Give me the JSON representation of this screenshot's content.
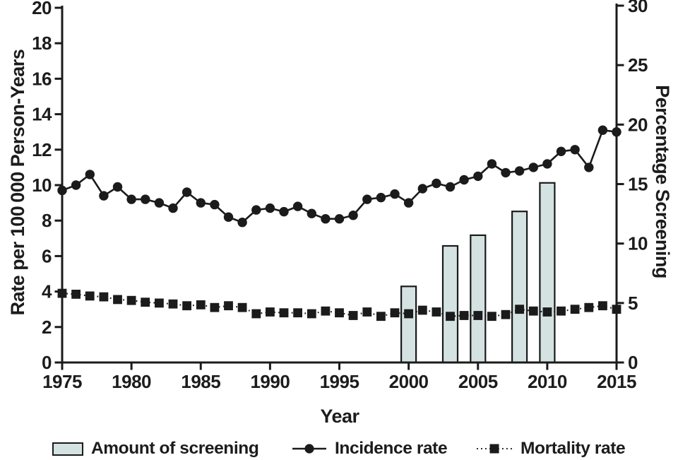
{
  "colors": {
    "ink": "#1c1c1c",
    "line": "#1b1b1b",
    "bar_fill": "#d4e2e2",
    "background": "#ffffff"
  },
  "chart_data": {
    "type": "combo",
    "title": "",
    "xlabel": "Year",
    "x_range": [
      1975,
      2015
    ],
    "x_ticks": [
      1975,
      1980,
      1985,
      1990,
      1995,
      2000,
      2005,
      2010,
      2015
    ],
    "left_axis": {
      "label": "Rate per 100 000 Person-Years",
      "range": [
        0,
        20
      ],
      "ticks": [
        0,
        2,
        4,
        6,
        8,
        10,
        12,
        14,
        16,
        18,
        20
      ]
    },
    "right_axis": {
      "label": "Percentage Screening",
      "range": [
        0,
        30
      ],
      "ticks": [
        0,
        5,
        10,
        15,
        20,
        25,
        30
      ]
    },
    "years": [
      1975,
      1976,
      1977,
      1978,
      1979,
      1980,
      1981,
      1982,
      1983,
      1984,
      1985,
      1986,
      1987,
      1988,
      1989,
      1990,
      1991,
      1992,
      1993,
      1994,
      1995,
      1996,
      1997,
      1998,
      1999,
      2000,
      2001,
      2002,
      2003,
      2004,
      2005,
      2006,
      2007,
      2008,
      2009,
      2010,
      2011,
      2012,
      2013,
      2014,
      2015
    ],
    "series": [
      {
        "name": "Amount of screening",
        "type": "bar",
        "axis": "right",
        "x": [
          2000,
          2003,
          2005,
          2008,
          2010
        ],
        "values": [
          6.4,
          9.8,
          10.7,
          12.7,
          15.1
        ],
        "fill": "#d4e2e2",
        "stroke": "#1b1b1b"
      },
      {
        "name": "Incidence rate",
        "type": "line",
        "axis": "left",
        "marker": "circle",
        "line_style": "solid",
        "values": [
          9.7,
          10.0,
          10.6,
          9.4,
          9.9,
          9.2,
          9.2,
          9.0,
          8.7,
          9.6,
          9.0,
          8.9,
          8.2,
          7.9,
          8.6,
          8.7,
          8.5,
          8.8,
          8.4,
          8.1,
          8.1,
          8.3,
          9.2,
          9.3,
          9.5,
          9.0,
          9.8,
          10.1,
          9.9,
          10.3,
          10.5,
          11.2,
          10.7,
          10.8,
          11.0,
          11.2,
          11.9,
          12.0,
          11.0,
          13.1,
          13.0
        ]
      },
      {
        "name": "Mortality rate",
        "type": "line",
        "axis": "left",
        "marker": "square",
        "line_style": "dotted",
        "values": [
          3.9,
          3.85,
          3.75,
          3.7,
          3.55,
          3.5,
          3.4,
          3.35,
          3.3,
          3.2,
          3.25,
          3.1,
          3.2,
          3.1,
          2.75,
          2.85,
          2.8,
          2.8,
          2.75,
          2.9,
          2.8,
          2.65,
          2.85,
          2.6,
          2.8,
          2.75,
          2.95,
          2.85,
          2.6,
          2.65,
          2.65,
          2.6,
          2.7,
          3.0,
          2.9,
          2.85,
          2.9,
          3.0,
          3.1,
          3.2,
          3.0
        ]
      }
    ],
    "legend_position": "bottom",
    "grid": false
  }
}
